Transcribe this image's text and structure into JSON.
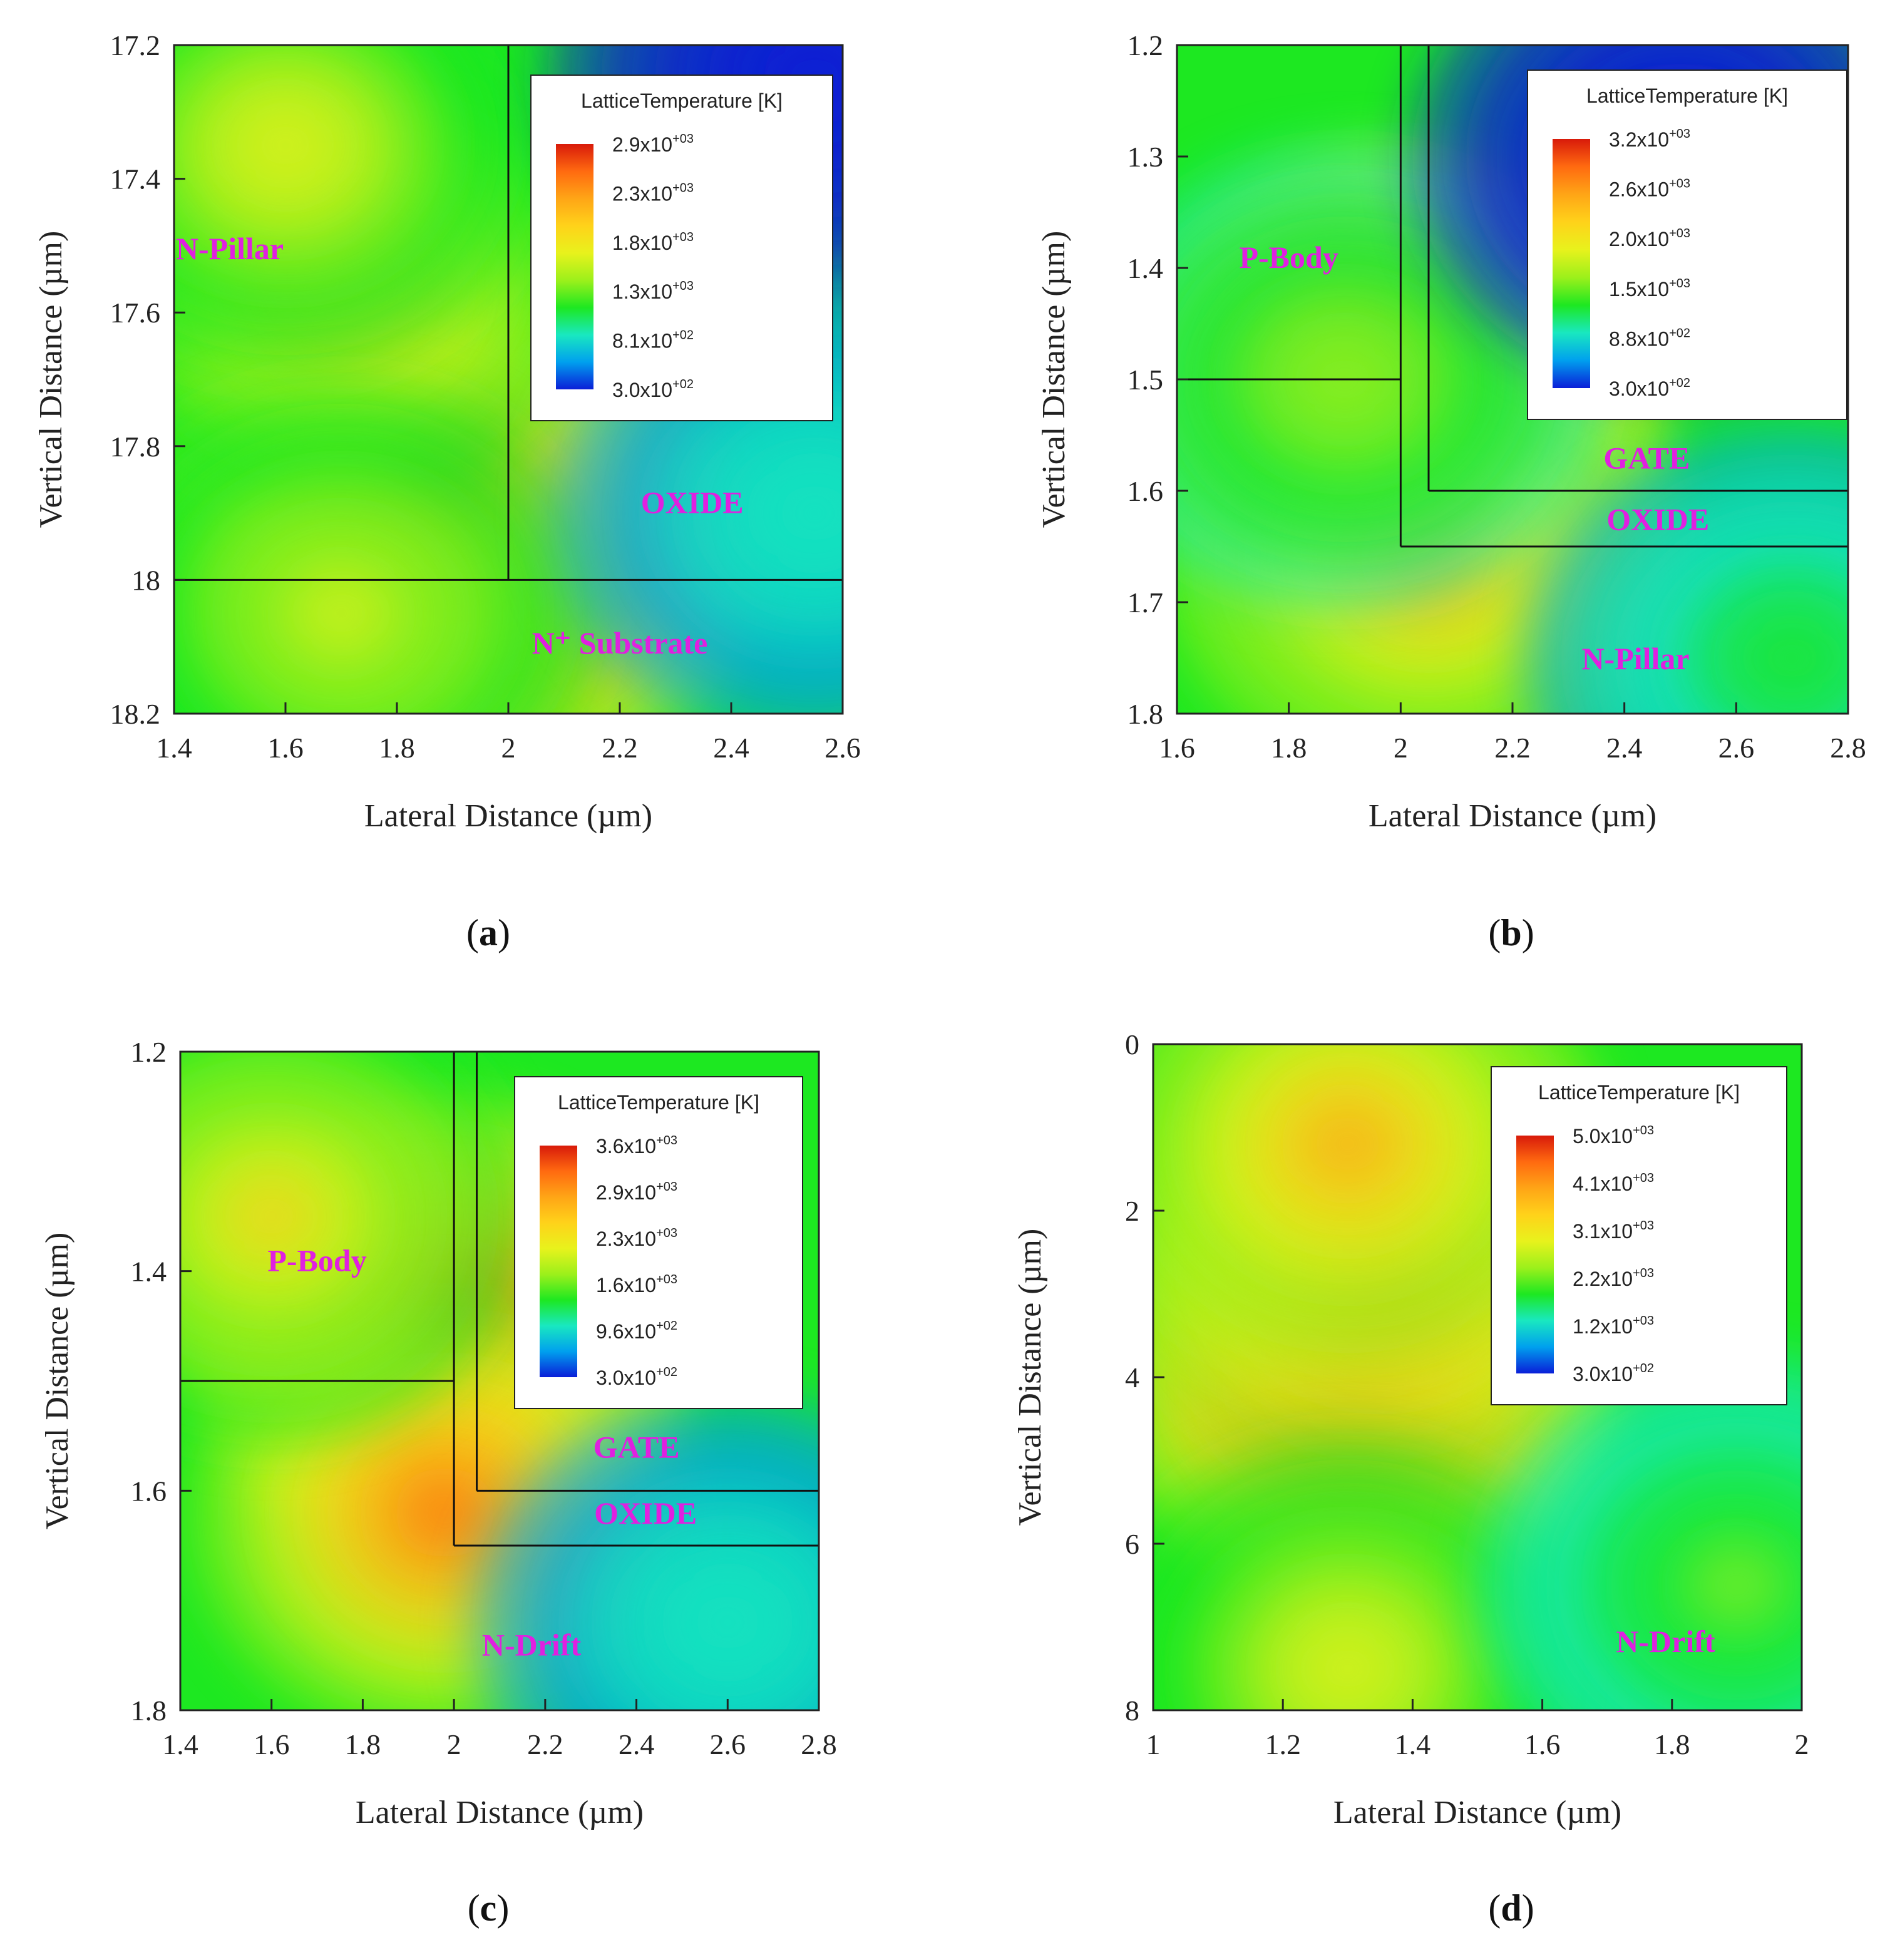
{
  "chart_data": [
    {
      "type": "heatmap",
      "panel": "a",
      "caption_letter": "a",
      "xlabel": "Lateral Distance (µm)",
      "ylabel": "Vertical Distance (µm)",
      "xlim": [
        1.4,
        2.6
      ],
      "ylim": [
        17.2,
        18.2
      ],
      "xticks": [
        "1.4",
        "1.6",
        "1.8",
        "2",
        "2.2",
        "2.4",
        "2.6"
      ],
      "yticks": [
        "17.2",
        "17.4",
        "17.6",
        "17.8",
        "18",
        "18.2"
      ],
      "legend": {
        "title": "LatticeTemperature [K]",
        "entries": [
          {
            "mant": "2.9x10",
            "exp": "+03"
          },
          {
            "mant": "2.3x10",
            "exp": "+03"
          },
          {
            "mant": "1.8x10",
            "exp": "+03"
          },
          {
            "mant": "1.3x10",
            "exp": "+03"
          },
          {
            "mant": "8.1x10",
            "exp": "+02"
          },
          {
            "mant": "3.0x10",
            "exp": "+02"
          }
        ]
      },
      "region_labels": [
        {
          "text": "N-Pillar",
          "x": 1.5,
          "y": 17.52
        },
        {
          "text": "OXIDE",
          "x": 2.33,
          "y": 17.9
        },
        {
          "text": "N⁺ Substrate",
          "x": 2.2,
          "y": 18.11
        }
      ],
      "boundaries": [
        {
          "x1": 2.0,
          "y1": 17.2,
          "x2": 2.0,
          "y2": 18.0
        },
        {
          "x1": 1.4,
          "y1": 18.0,
          "x2": 2.6,
          "y2": 18.0
        }
      ],
      "hotspots": [
        {
          "x": 1.98,
          "y": 17.96,
          "level": 1.0
        },
        {
          "x": 1.85,
          "y": 17.85,
          "level": 0.85
        },
        {
          "x": 1.7,
          "y": 17.55,
          "level": 0.7
        },
        {
          "x": 1.6,
          "y": 17.35,
          "level": 0.6
        },
        {
          "x": 1.7,
          "y": 18.05,
          "level": 0.55
        },
        {
          "x": 2.55,
          "y": 17.25,
          "level": 0.0
        },
        {
          "x": 2.55,
          "y": 17.9,
          "level": 0.3
        }
      ]
    },
    {
      "type": "heatmap",
      "panel": "b",
      "caption_letter": "b",
      "xlabel": "Lateral Distance (µm)",
      "ylabel": "Vertical Distance (µm)",
      "xlim": [
        1.6,
        2.8
      ],
      "ylim": [
        1.2,
        1.8
      ],
      "xticks": [
        "1.6",
        "1.8",
        "2",
        "2.2",
        "2.4",
        "2.6",
        "2.8"
      ],
      "yticks": [
        "1.2",
        "1.3",
        "1.4",
        "1.5",
        "1.6",
        "1.7",
        "1.8"
      ],
      "legend": {
        "title": "LatticeTemperature [K]",
        "entries": [
          {
            "mant": "3.2x10",
            "exp": "+03"
          },
          {
            "mant": "2.6x10",
            "exp": "+03"
          },
          {
            "mant": "2.0x10",
            "exp": "+03"
          },
          {
            "mant": "1.5x10",
            "exp": "+03"
          },
          {
            "mant": "8.8x10",
            "exp": "+02"
          },
          {
            "mant": "3.0x10",
            "exp": "+02"
          }
        ]
      },
      "region_labels": [
        {
          "text": "P-Body",
          "x": 1.8,
          "y": 1.4
        },
        {
          "text": "GATE",
          "x": 2.44,
          "y": 1.58
        },
        {
          "text": "OXIDE",
          "x": 2.46,
          "y": 1.635
        },
        {
          "text": "N-Pillar",
          "x": 2.42,
          "y": 1.76
        }
      ],
      "boundaries": [
        {
          "x1": 1.6,
          "y1": 1.5,
          "x2": 2.0,
          "y2": 1.5
        },
        {
          "x1": 2.0,
          "y1": 1.2,
          "x2": 2.0,
          "y2": 1.65
        },
        {
          "x1": 2.0,
          "y1": 1.65,
          "x2": 2.8,
          "y2": 1.65
        },
        {
          "x1": 2.05,
          "y1": 1.2,
          "x2": 2.05,
          "y2": 1.6
        },
        {
          "x1": 2.05,
          "y1": 1.6,
          "x2": 2.8,
          "y2": 1.6
        }
      ],
      "hotspots": [
        {
          "x": 2.0,
          "y": 1.5,
          "level": 1.0
        },
        {
          "x": 2.05,
          "y": 1.66,
          "level": 0.75
        },
        {
          "x": 1.9,
          "y": 1.5,
          "level": 0.5
        },
        {
          "x": 2.5,
          "y": 1.3,
          "level": 0.0
        },
        {
          "x": 2.7,
          "y": 1.75,
          "level": 0.35
        }
      ]
    },
    {
      "type": "heatmap",
      "panel": "c",
      "caption_letter": "c",
      "xlabel": "Lateral Distance (µm)",
      "ylabel": "Vertical Distance (µm)",
      "xlim": [
        1.4,
        2.8
      ],
      "ylim": [
        1.2,
        1.8
      ],
      "xticks": [
        "1.4",
        "1.6",
        "1.8",
        "2",
        "2.2",
        "2.4",
        "2.6",
        "2.8"
      ],
      "yticks": [
        "1.2",
        "1.4",
        "1.6",
        "1.8"
      ],
      "legend": {
        "title": "LatticeTemperature [K]",
        "entries": [
          {
            "mant": "3.6x10",
            "exp": "+03"
          },
          {
            "mant": "2.9x10",
            "exp": "+03"
          },
          {
            "mant": "2.3x10",
            "exp": "+03"
          },
          {
            "mant": "1.6x10",
            "exp": "+03"
          },
          {
            "mant": "9.6x10",
            "exp": "+02"
          },
          {
            "mant": "3.0x10",
            "exp": "+02"
          }
        ]
      },
      "region_labels": [
        {
          "text": "P-Body",
          "x": 1.7,
          "y": 1.4
        },
        {
          "text": "GATE",
          "x": 2.4,
          "y": 1.57
        },
        {
          "text": "OXIDE",
          "x": 2.42,
          "y": 1.63
        },
        {
          "text": "N-Drift",
          "x": 2.17,
          "y": 1.75
        }
      ],
      "boundaries": [
        {
          "x1": 1.4,
          "y1": 1.5,
          "x2": 2.0,
          "y2": 1.5
        },
        {
          "x1": 2.0,
          "y1": 1.2,
          "x2": 2.0,
          "y2": 1.65
        },
        {
          "x1": 2.0,
          "y1": 1.65,
          "x2": 2.8,
          "y2": 1.65
        },
        {
          "x1": 2.05,
          "y1": 1.2,
          "x2": 2.05,
          "y2": 1.6
        },
        {
          "x1": 2.05,
          "y1": 1.6,
          "x2": 2.8,
          "y2": 1.6
        }
      ],
      "hotspots": [
        {
          "x": 1.97,
          "y": 1.45,
          "level": 1.0
        },
        {
          "x": 1.98,
          "y": 1.62,
          "level": 0.85
        },
        {
          "x": 1.6,
          "y": 1.35,
          "level": 0.62
        },
        {
          "x": 2.6,
          "y": 1.72,
          "level": 0.3
        }
      ]
    },
    {
      "type": "heatmap",
      "panel": "d",
      "caption_letter": "d",
      "xlabel": "Lateral Distance (µm)",
      "ylabel": "Vertical Distance (µm)",
      "xlim": [
        1.0,
        2.0
      ],
      "ylim": [
        0,
        8
      ],
      "xticks": [
        "1",
        "1.2",
        "1.4",
        "1.6",
        "1.8",
        "2"
      ],
      "yticks": [
        "0",
        "2",
        "4",
        "6",
        "8"
      ],
      "legend": {
        "title": "LatticeTemperature [K]",
        "entries": [
          {
            "mant": "5.0x10",
            "exp": "+03"
          },
          {
            "mant": "4.1x10",
            "exp": "+03"
          },
          {
            "mant": "3.1x10",
            "exp": "+03"
          },
          {
            "mant": "2.2x10",
            "exp": "+03"
          },
          {
            "mant": "1.2x10",
            "exp": "+03"
          },
          {
            "mant": "3.0x10",
            "exp": "+02"
          }
        ]
      },
      "region_labels": [
        {
          "text": "N-Drift",
          "x": 1.79,
          "y": 7.3
        }
      ],
      "boundaries": [],
      "hotspots": [
        {
          "x": 1.32,
          "y": 4.0,
          "level": 1.0
        },
        {
          "x": 1.35,
          "y": 2.5,
          "level": 0.85
        },
        {
          "x": 1.3,
          "y": 1.2,
          "level": 0.75
        },
        {
          "x": 1.3,
          "y": 7.5,
          "level": 0.6
        },
        {
          "x": 1.9,
          "y": 6.5,
          "level": 0.45
        }
      ]
    }
  ]
}
